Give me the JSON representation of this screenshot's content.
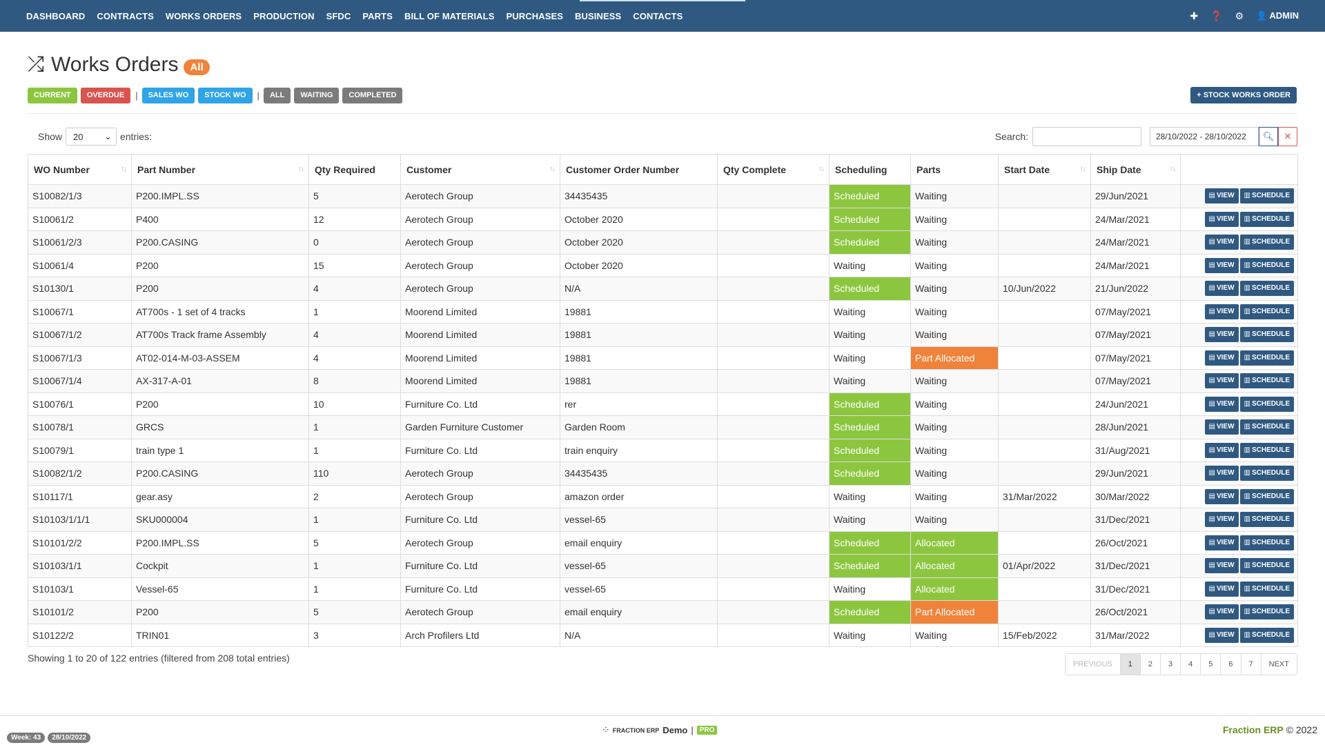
{
  "nav": {
    "items": [
      "DASHBOARD",
      "CONTRACTS",
      "WORKS ORDERS",
      "PRODUCTION",
      "SFDC",
      "PARTS",
      "BILL OF MATERIALS",
      "PURCHASES",
      "BUSINESS",
      "CONTACTS"
    ],
    "user": "ADMIN"
  },
  "header": {
    "title": "Works Orders",
    "badge": "All"
  },
  "filters": {
    "current": "CURRENT",
    "overdue": "OVERDUE",
    "sales_wo": "SALES WO",
    "stock_wo": "STOCK WO",
    "all": "ALL",
    "waiting": "WAITING",
    "completed": "COMPLETED",
    "stock_works_order": "+ STOCK WORKS ORDER"
  },
  "controls": {
    "show": "Show",
    "entries_value": "20",
    "entries": "entries:",
    "search": "Search:",
    "date_range": "28/10/2022 - 28/10/2022"
  },
  "table": {
    "columns": [
      "WO Number",
      "Part Number",
      "Qty Required",
      "Customer",
      "Customer Order Number",
      "Qty Complete",
      "Scheduling",
      "Parts",
      "Start Date",
      "Ship Date"
    ],
    "view_label": "VIEW",
    "schedule_label": "SCHEDULE",
    "rows": [
      {
        "wo": "S10082/1/3",
        "part": "P200.IMPL.SS",
        "qty": "5",
        "customer": "Aerotech Group",
        "order": "34435435",
        "complete": "",
        "sched": "Scheduled",
        "parts": "Waiting",
        "start": "",
        "ship": "29/Jun/2021"
      },
      {
        "wo": "S10061/2",
        "part": "P400",
        "qty": "12",
        "customer": "Aerotech Group",
        "order": "October 2020",
        "complete": "",
        "sched": "Scheduled",
        "parts": "Waiting",
        "start": "",
        "ship": "24/Mar/2021"
      },
      {
        "wo": "S10061/2/3",
        "part": "P200.CASING",
        "qty": "0",
        "customer": "Aerotech Group",
        "order": "October 2020",
        "complete": "",
        "sched": "Scheduled",
        "parts": "Waiting",
        "start": "",
        "ship": "24/Mar/2021"
      },
      {
        "wo": "S10061/4",
        "part": "P200",
        "qty": "15",
        "customer": "Aerotech Group",
        "order": "October 2020",
        "complete": "",
        "sched": "Waiting",
        "parts": "Waiting",
        "start": "",
        "ship": "24/Mar/2021"
      },
      {
        "wo": "S10130/1",
        "part": "P200",
        "qty": "4",
        "customer": "Aerotech Group",
        "order": "N/A",
        "complete": "",
        "sched": "Scheduled",
        "parts": "Waiting",
        "start": "10/Jun/2022",
        "ship": "21/Jun/2022"
      },
      {
        "wo": "S10067/1",
        "part": "AT700s - 1 set of 4 tracks",
        "qty": "1",
        "customer": "Moorend Limited",
        "order": "19881",
        "complete": "",
        "sched": "Waiting",
        "parts": "Waiting",
        "start": "",
        "ship": "07/May/2021"
      },
      {
        "wo": "S10067/1/2",
        "part": "AT700s Track frame Assembly",
        "qty": "4",
        "customer": "Moorend Limited",
        "order": "19881",
        "complete": "",
        "sched": "Waiting",
        "parts": "Waiting",
        "start": "",
        "ship": "07/May/2021"
      },
      {
        "wo": "S10067/1/3",
        "part": "AT02-014-M-03-ASSEM",
        "qty": "4",
        "customer": "Moorend Limited",
        "order": "19881",
        "complete": "",
        "sched": "Waiting",
        "parts": "Part Allocated",
        "start": "",
        "ship": "07/May/2021"
      },
      {
        "wo": "S10067/1/4",
        "part": "AX-317-A-01",
        "qty": "8",
        "customer": "Moorend Limited",
        "order": "19881",
        "complete": "",
        "sched": "Waiting",
        "parts": "Waiting",
        "start": "",
        "ship": "07/May/2021"
      },
      {
        "wo": "S10076/1",
        "part": "P200",
        "qty": "10",
        "customer": "Furniture Co. Ltd",
        "order": "rer",
        "complete": "",
        "sched": "Scheduled",
        "parts": "Waiting",
        "start": "",
        "ship": "24/Jun/2021"
      },
      {
        "wo": "S10078/1",
        "part": "GRCS",
        "qty": "1",
        "customer": "Garden Furniture Customer",
        "order": "Garden Room",
        "complete": "",
        "sched": "Scheduled",
        "parts": "Waiting",
        "start": "",
        "ship": "28/Jun/2021"
      },
      {
        "wo": "S10079/1",
        "part": "train type 1",
        "qty": "1",
        "customer": "Furniture Co. Ltd",
        "order": "train enquiry",
        "complete": "",
        "sched": "Scheduled",
        "parts": "Waiting",
        "start": "",
        "ship": "31/Aug/2021"
      },
      {
        "wo": "S10082/1/2",
        "part": "P200.CASING",
        "qty": "110",
        "customer": "Aerotech Group",
        "order": "34435435",
        "complete": "",
        "sched": "Scheduled",
        "parts": "Waiting",
        "start": "",
        "ship": "29/Jun/2021"
      },
      {
        "wo": "S10117/1",
        "part": "gear.asy",
        "qty": "2",
        "customer": "Aerotech Group",
        "order": "amazon order",
        "complete": "",
        "sched": "Waiting",
        "parts": "Waiting",
        "start": "31/Mar/2022",
        "ship": "30/Mar/2022"
      },
      {
        "wo": "S10103/1/1/1",
        "part": "SKU000004",
        "qty": "1",
        "customer": "Furniture Co. Ltd",
        "order": "vessel-65",
        "complete": "",
        "sched": "Waiting",
        "parts": "Waiting",
        "start": "",
        "ship": "31/Dec/2021"
      },
      {
        "wo": "S10101/2/2",
        "part": "P200.IMPL.SS",
        "qty": "5",
        "customer": "Aerotech Group",
        "order": "email enquiry",
        "complete": "",
        "sched": "Scheduled",
        "parts": "Allocated",
        "start": "",
        "ship": "26/Oct/2021"
      },
      {
        "wo": "S10103/1/1",
        "part": "Cockpit",
        "qty": "1",
        "customer": "Furniture Co. Ltd",
        "order": "vessel-65",
        "complete": "",
        "sched": "Scheduled",
        "parts": "Allocated",
        "start": "01/Apr/2022",
        "ship": "31/Dec/2021"
      },
      {
        "wo": "S10103/1",
        "part": "Vessel-65",
        "qty": "1",
        "customer": "Furniture Co. Ltd",
        "order": "vessel-65",
        "complete": "",
        "sched": "Waiting",
        "parts": "Allocated",
        "start": "",
        "ship": "31/Dec/2021"
      },
      {
        "wo": "S10101/2",
        "part": "P200",
        "qty": "5",
        "customer": "Aerotech Group",
        "order": "email enquiry",
        "complete": "",
        "sched": "Scheduled",
        "parts": "Part Allocated",
        "start": "",
        "ship": "26/Oct/2021"
      },
      {
        "wo": "S10122/2",
        "part": "TRIN01",
        "qty": "3",
        "customer": "Arch Profilers Ltd",
        "order": "N/A",
        "complete": "",
        "sched": "Waiting",
        "parts": "Waiting",
        "start": "15/Feb/2022",
        "ship": "31/Mar/2022"
      }
    ]
  },
  "pagination": {
    "info": "Showing 1 to 20 of 122 entries (filtered from 208 total entries)",
    "previous": "PREVIOUS",
    "pages": [
      "1",
      "2",
      "3",
      "4",
      "5",
      "6",
      "7"
    ],
    "next": "NEXT"
  },
  "footer": {
    "week": "Week: 43",
    "date": "28/10/2022",
    "brand_small": "FRACTION ERP",
    "brand_demo": "Demo",
    "pro": "PRO",
    "copyright_brand": "Fraction ERP",
    "copyright": "© 2022"
  },
  "colors": {
    "nav_bg": "#2f5981",
    "green": "#8cc63f",
    "orange": "#f0833a",
    "red": "#d9534f",
    "blue": "#2fa4e7"
  }
}
